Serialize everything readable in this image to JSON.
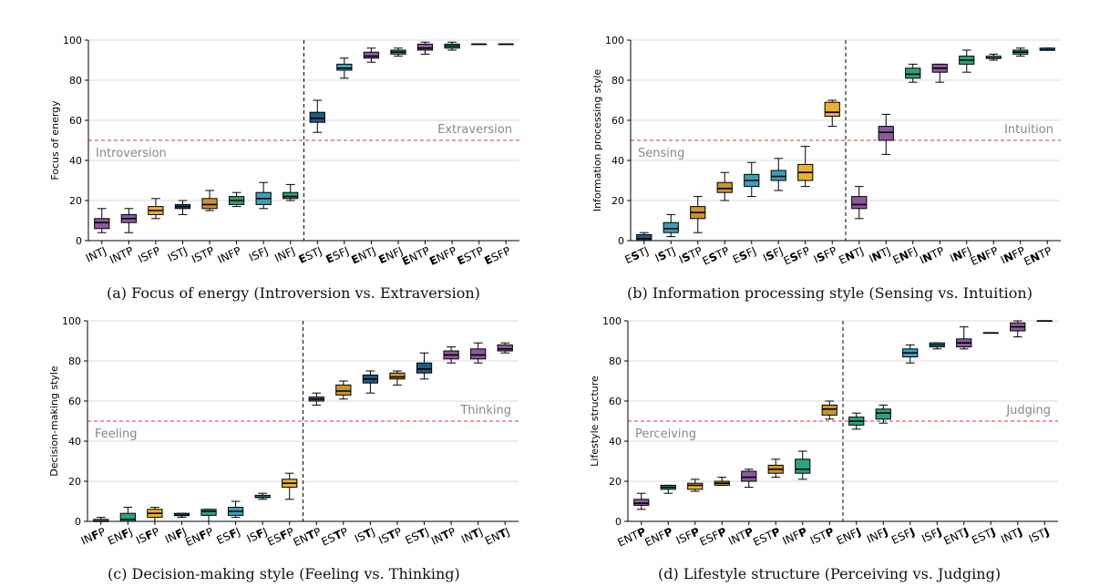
{
  "chart_data": [
    {
      "type": "box",
      "caption": "(a) Focus of energy (Introversion vs. Extraversion)",
      "ylabel": "Focus of energy",
      "ylim": [
        0,
        100
      ],
      "yticks": [
        0,
        20,
        40,
        60,
        80,
        100
      ],
      "threshold": 50,
      "split_after": 8,
      "left_label": "Introversion",
      "right_label": "Extraversion",
      "categories": [
        {
          "pre": "I",
          "bold": "",
          "post": "NTJ"
        },
        {
          "pre": "I",
          "bold": "",
          "post": "NTP"
        },
        {
          "pre": "I",
          "bold": "",
          "post": "SFP"
        },
        {
          "pre": "I",
          "bold": "",
          "post": "STJ"
        },
        {
          "pre": "I",
          "bold": "",
          "post": "STP"
        },
        {
          "pre": "I",
          "bold": "",
          "post": "NFP"
        },
        {
          "pre": "I",
          "bold": "",
          "post": "SFJ"
        },
        {
          "pre": "I",
          "bold": "",
          "post": "NFJ"
        },
        {
          "pre": "",
          "bold": "E",
          "post": "STJ"
        },
        {
          "pre": "",
          "bold": "E",
          "post": "SFJ"
        },
        {
          "pre": "",
          "bold": "E",
          "post": "NTJ"
        },
        {
          "pre": "",
          "bold": "E",
          "post": "NFJ"
        },
        {
          "pre": "",
          "bold": "E",
          "post": "NTP"
        },
        {
          "pre": "",
          "bold": "E",
          "post": "NFP"
        },
        {
          "pre": "",
          "bold": "E",
          "post": "STP"
        },
        {
          "pre": "",
          "bold": "E",
          "post": "SFP"
        }
      ],
      "boxes": [
        {
          "min": 4,
          "q1": 6,
          "median": 9,
          "q3": 11,
          "max": 16,
          "color": "#8b5a9e"
        },
        {
          "min": 4,
          "q1": 9,
          "median": 11,
          "q3": 13,
          "max": 16,
          "color": "#8b5a9e"
        },
        {
          "min": 11,
          "q1": 13,
          "median": 15,
          "q3": 17,
          "max": 21,
          "color": "#e8b130"
        },
        {
          "min": 13,
          "q1": 16,
          "median": 17,
          "q3": 18,
          "max": 20,
          "color": "#1f5a82"
        },
        {
          "min": 15,
          "q1": 16,
          "median": 18,
          "q3": 21,
          "max": 25,
          "color": "#c9952b"
        },
        {
          "min": 17,
          "q1": 18,
          "median": 20,
          "q3": 22,
          "max": 24,
          "color": "#2ca37a"
        },
        {
          "min": 16,
          "q1": 18,
          "median": 21,
          "q3": 24,
          "max": 29,
          "color": "#3ba0b8"
        },
        {
          "min": 20,
          "q1": 21,
          "median": 22,
          "q3": 24,
          "max": 28,
          "color": "#2ca37a"
        },
        {
          "min": 54,
          "q1": 59,
          "median": 61,
          "q3": 64,
          "max": 70,
          "color": "#1f5a82"
        },
        {
          "min": 81,
          "q1": 85,
          "median": 86,
          "q3": 88,
          "max": 91,
          "color": "#3ba0b8"
        },
        {
          "min": 89,
          "q1": 91,
          "median": 92,
          "q3": 94,
          "max": 96,
          "color": "#8b5a9e"
        },
        {
          "min": 92,
          "q1": 93,
          "median": 94,
          "q3": 95,
          "max": 96,
          "color": "#2ca37a"
        },
        {
          "min": 93,
          "q1": 95,
          "median": 96,
          "q3": 98,
          "max": 99,
          "color": "#8b5a9e"
        },
        {
          "min": 95,
          "q1": 96,
          "median": 97,
          "q3": 98,
          "max": 99,
          "color": "#2ca37a"
        },
        {
          "min": 98,
          "q1": 98,
          "median": 98,
          "q3": 98,
          "max": 98,
          "color": "#1f5a82"
        },
        {
          "min": 98,
          "q1": 98,
          "median": 98,
          "q3": 98,
          "max": 98,
          "color": "#e8b130"
        }
      ]
    },
    {
      "type": "box",
      "caption": "(b) Information processing style (Sensing vs. Intuition)",
      "ylabel": "Information processing style",
      "ylim": [
        0,
        100
      ],
      "yticks": [
        0,
        20,
        40,
        60,
        80,
        100
      ],
      "threshold": 50,
      "split_after": 8,
      "left_label": "Sensing",
      "right_label": "Intuition",
      "categories": [
        {
          "pre": "E",
          "bold": "S",
          "post": "TJ"
        },
        {
          "pre": "I",
          "bold": "S",
          "post": "TJ"
        },
        {
          "pre": "I",
          "bold": "S",
          "post": "TP"
        },
        {
          "pre": "E",
          "bold": "S",
          "post": "TP"
        },
        {
          "pre": "E",
          "bold": "S",
          "post": "FJ"
        },
        {
          "pre": "I",
          "bold": "S",
          "post": "FJ"
        },
        {
          "pre": "E",
          "bold": "S",
          "post": "FP"
        },
        {
          "pre": "I",
          "bold": "S",
          "post": "FP"
        },
        {
          "pre": "E",
          "bold": "N",
          "post": "TJ"
        },
        {
          "pre": "I",
          "bold": "N",
          "post": "TJ"
        },
        {
          "pre": "E",
          "bold": "N",
          "post": "FJ"
        },
        {
          "pre": "I",
          "bold": "N",
          "post": "TP"
        },
        {
          "pre": "I",
          "bold": "N",
          "post": "FJ"
        },
        {
          "pre": "E",
          "bold": "N",
          "post": "FP"
        },
        {
          "pre": "I",
          "bold": "N",
          "post": "FP"
        },
        {
          "pre": "E",
          "bold": "N",
          "post": "TP"
        }
      ],
      "boxes": [
        {
          "min": 0,
          "q1": 0,
          "median": 1,
          "q3": 3,
          "max": 4,
          "color": "#1f5a82"
        },
        {
          "min": 2,
          "q1": 4,
          "median": 6,
          "q3": 9,
          "max": 13,
          "color": "#3ba0b8"
        },
        {
          "min": 4,
          "q1": 11,
          "median": 14,
          "q3": 17,
          "max": 22,
          "color": "#c9952b"
        },
        {
          "min": 20,
          "q1": 24,
          "median": 26,
          "q3": 29,
          "max": 34,
          "color": "#c9952b"
        },
        {
          "min": 22,
          "q1": 27,
          "median": 30,
          "q3": 33,
          "max": 39,
          "color": "#3ba0b8"
        },
        {
          "min": 25,
          "q1": 30,
          "median": 32,
          "q3": 35,
          "max": 41,
          "color": "#3ba0b8"
        },
        {
          "min": 27,
          "q1": 30,
          "median": 34,
          "q3": 38,
          "max": 47,
          "color": "#e8b130"
        },
        {
          "min": 57,
          "q1": 62,
          "median": 64,
          "q3": 69,
          "max": 70,
          "color": "#e8b130"
        },
        {
          "min": 11,
          "q1": 16,
          "median": 18,
          "q3": 22,
          "max": 27,
          "color": "#8b5a9e"
        },
        {
          "min": 43,
          "q1": 50,
          "median": 54,
          "q3": 57,
          "max": 63,
          "color": "#8b5a9e"
        },
        {
          "min": 79,
          "q1": 81,
          "median": 83,
          "q3": 86,
          "max": 88,
          "color": "#2ca37a"
        },
        {
          "min": 79,
          "q1": 84,
          "median": 86,
          "q3": 88,
          "max": 88,
          "color": "#8b5a9e"
        },
        {
          "min": 84,
          "q1": 88,
          "median": 90,
          "q3": 92,
          "max": 95,
          "color": "#2ca37a"
        },
        {
          "min": 90,
          "q1": 91,
          "median": 91,
          "q3": 92,
          "max": 93,
          "color": "#2ca37a"
        },
        {
          "min": 92,
          "q1": 93,
          "median": 94,
          "q3": 95,
          "max": 96,
          "color": "#2ca37a"
        },
        {
          "min": 95,
          "q1": 95,
          "median": 95,
          "q3": 96,
          "max": 96,
          "color": "#1f5a82"
        }
      ]
    },
    {
      "type": "box",
      "caption": "(c) Decision-making style (Feeling vs. Thinking)",
      "ylabel": "Decision-making style",
      "ylim": [
        0,
        100
      ],
      "yticks": [
        0,
        20,
        40,
        60,
        80,
        100
      ],
      "threshold": 50,
      "split_after": 8,
      "left_label": "Feeling",
      "right_label": "Thinking",
      "categories": [
        {
          "pre": "IN",
          "bold": "F",
          "post": "P"
        },
        {
          "pre": "EN",
          "bold": "F",
          "post": "J"
        },
        {
          "pre": "IS",
          "bold": "F",
          "post": "P"
        },
        {
          "pre": "IN",
          "bold": "F",
          "post": "J"
        },
        {
          "pre": "EN",
          "bold": "F",
          "post": "P"
        },
        {
          "pre": "ES",
          "bold": "F",
          "post": "J"
        },
        {
          "pre": "IS",
          "bold": "F",
          "post": "J"
        },
        {
          "pre": "ES",
          "bold": "F",
          "post": "P"
        },
        {
          "pre": "EN",
          "bold": "T",
          "post": "P"
        },
        {
          "pre": "ES",
          "bold": "T",
          "post": "P"
        },
        {
          "pre": "IS",
          "bold": "T",
          "post": "J"
        },
        {
          "pre": "IS",
          "bold": "T",
          "post": "P"
        },
        {
          "pre": "ES",
          "bold": "T",
          "post": "J"
        },
        {
          "pre": "IN",
          "bold": "T",
          "post": "P"
        },
        {
          "pre": "IN",
          "bold": "T",
          "post": "J"
        },
        {
          "pre": "EN",
          "bold": "T",
          "post": "J"
        }
      ],
      "boxes": [
        {
          "min": 0,
          "q1": 0,
          "median": 0,
          "q3": 1,
          "max": 2,
          "color": "#8b5a9e"
        },
        {
          "min": 0,
          "q1": 0,
          "median": 1,
          "q3": 4,
          "max": 7,
          "color": "#2ca37a"
        },
        {
          "min": 0,
          "q1": 2,
          "median": 4,
          "q3": 6,
          "max": 7,
          "color": "#e8b130"
        },
        {
          "min": 2,
          "q1": 3,
          "median": 3,
          "q3": 4,
          "max": 4,
          "color": "#1f5a82"
        },
        {
          "min": 0,
          "q1": 3,
          "median": 5,
          "q3": 6,
          "max": 6,
          "color": "#2ca37a"
        },
        {
          "min": 2,
          "q1": 3,
          "median": 5,
          "q3": 7,
          "max": 10,
          "color": "#3ba0b8"
        },
        {
          "min": 11,
          "q1": 12,
          "median": 12,
          "q3": 13,
          "max": 14,
          "color": "#3ba0b8"
        },
        {
          "min": 11,
          "q1": 17,
          "median": 19,
          "q3": 21,
          "max": 24,
          "color": "#e8b130"
        },
        {
          "min": 58,
          "q1": 60,
          "median": 61,
          "q3": 62,
          "max": 64,
          "color": "#8b5a9e"
        },
        {
          "min": 61,
          "q1": 63,
          "median": 65,
          "q3": 68,
          "max": 70,
          "color": "#c9952b"
        },
        {
          "min": 64,
          "q1": 69,
          "median": 71,
          "q3": 73,
          "max": 75,
          "color": "#1f5a82"
        },
        {
          "min": 68,
          "q1": 71,
          "median": 72,
          "q3": 74,
          "max": 75,
          "color": "#c9952b"
        },
        {
          "min": 71,
          "q1": 74,
          "median": 76,
          "q3": 79,
          "max": 84,
          "color": "#1f5a82"
        },
        {
          "min": 79,
          "q1": 81,
          "median": 83,
          "q3": 85,
          "max": 87,
          "color": "#8b5a9e"
        },
        {
          "min": 79,
          "q1": 81,
          "median": 83,
          "q3": 86,
          "max": 89,
          "color": "#8b5a9e"
        },
        {
          "min": 84,
          "q1": 85,
          "median": 86,
          "q3": 88,
          "max": 89,
          "color": "#8b5a9e"
        }
      ]
    },
    {
      "type": "box",
      "caption": "(d) Lifestyle structure (Perceiving vs. Judging)",
      "ylabel": "Lifestyle structure",
      "ylim": [
        0,
        100
      ],
      "yticks": [
        0,
        20,
        40,
        60,
        80,
        100
      ],
      "threshold": 50,
      "split_after": 8,
      "left_label": "Perceiving",
      "right_label": "Judging",
      "categories": [
        {
          "pre": "ENT",
          "bold": "P",
          "post": ""
        },
        {
          "pre": "ENF",
          "bold": "P",
          "post": ""
        },
        {
          "pre": "ISF",
          "bold": "P",
          "post": ""
        },
        {
          "pre": "ESF",
          "bold": "P",
          "post": ""
        },
        {
          "pre": "INT",
          "bold": "P",
          "post": ""
        },
        {
          "pre": "EST",
          "bold": "P",
          "post": ""
        },
        {
          "pre": "INF",
          "bold": "P",
          "post": ""
        },
        {
          "pre": "IST",
          "bold": "P",
          "post": ""
        },
        {
          "pre": "ENF",
          "bold": "J",
          "post": ""
        },
        {
          "pre": "INF",
          "bold": "J",
          "post": ""
        },
        {
          "pre": "ESF",
          "bold": "J",
          "post": ""
        },
        {
          "pre": "ISF",
          "bold": "J",
          "post": ""
        },
        {
          "pre": "ENT",
          "bold": "J",
          "post": ""
        },
        {
          "pre": "EST",
          "bold": "J",
          "post": ""
        },
        {
          "pre": "INT",
          "bold": "J",
          "post": ""
        },
        {
          "pre": "IST",
          "bold": "J",
          "post": ""
        }
      ],
      "boxes": [
        {
          "min": 6,
          "q1": 8,
          "median": 9,
          "q3": 11,
          "max": 14,
          "color": "#8b5a9e"
        },
        {
          "min": 14,
          "q1": 16,
          "median": 17,
          "q3": 18,
          "max": 18,
          "color": "#2ca37a"
        },
        {
          "min": 15,
          "q1": 16,
          "median": 18,
          "q3": 19,
          "max": 21,
          "color": "#e8b130"
        },
        {
          "min": 18,
          "q1": 18,
          "median": 19,
          "q3": 20,
          "max": 22,
          "color": "#c9952b"
        },
        {
          "min": 17,
          "q1": 20,
          "median": 22,
          "q3": 25,
          "max": 26,
          "color": "#8b5a9e"
        },
        {
          "min": 22,
          "q1": 24,
          "median": 26,
          "q3": 28,
          "max": 31,
          "color": "#c9952b"
        },
        {
          "min": 21,
          "q1": 24,
          "median": 26,
          "q3": 31,
          "max": 35,
          "color": "#2ca37a"
        },
        {
          "min": 51,
          "q1": 53,
          "median": 56,
          "q3": 58,
          "max": 60,
          "color": "#c9952b"
        },
        {
          "min": 46,
          "q1": 48,
          "median": 50,
          "q3": 52,
          "max": 54,
          "color": "#2ca37a"
        },
        {
          "min": 49,
          "q1": 51,
          "median": 54,
          "q3": 56,
          "max": 58,
          "color": "#2ca37a"
        },
        {
          "min": 79,
          "q1": 82,
          "median": 84,
          "q3": 86,
          "max": 88,
          "color": "#3ba0b8"
        },
        {
          "min": 86,
          "q1": 87,
          "median": 88,
          "q3": 89,
          "max": 89,
          "color": "#3ba0b8"
        },
        {
          "min": 86,
          "q1": 87,
          "median": 89,
          "q3": 91,
          "max": 97,
          "color": "#8b5a9e"
        },
        {
          "min": 94,
          "q1": 94,
          "median": 94,
          "q3": 94,
          "max": 94,
          "color": "#1f5a82"
        },
        {
          "min": 92,
          "q1": 95,
          "median": 97,
          "q3": 99,
          "max": 100,
          "color": "#8b5a9e"
        },
        {
          "min": 100,
          "q1": 100,
          "median": 100,
          "q3": 100,
          "max": 100,
          "color": "#1f5a82"
        }
      ]
    }
  ]
}
